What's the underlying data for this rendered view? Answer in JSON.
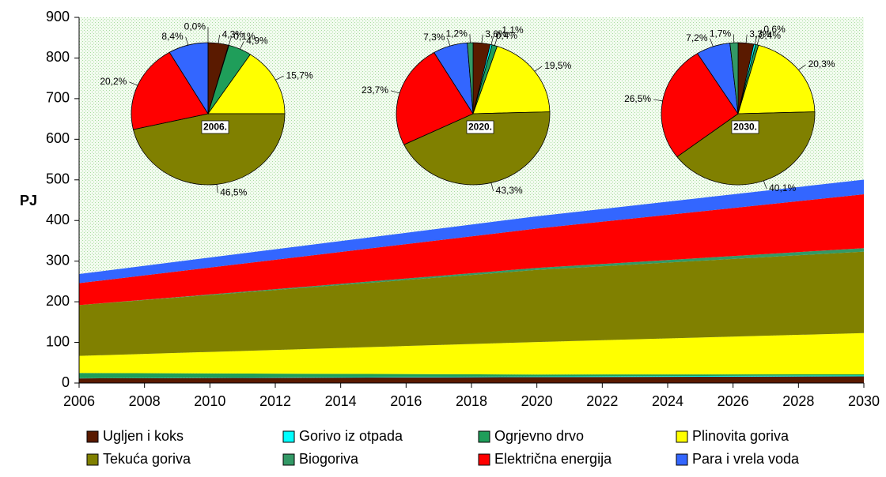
{
  "chart_data": [
    {
      "type": "area",
      "y_label": "PJ",
      "stacked": true,
      "x": [
        2006,
        2020,
        2030
      ],
      "xlim": [
        2006,
        2030
      ],
      "xticks": [
        2006,
        2008,
        2010,
        2012,
        2014,
        2016,
        2018,
        2020,
        2022,
        2024,
        2026,
        2028,
        2030
      ],
      "ylim": [
        0,
        900
      ],
      "yticks": [
        0,
        100,
        200,
        300,
        400,
        500,
        600,
        700,
        800,
        900
      ],
      "series": [
        {
          "name": "Ugljen i koks",
          "color": "#5a1a00",
          "values": [
            11.5,
            14.8,
            16.5
          ]
        },
        {
          "name": "Gorivo iz otpada",
          "color": "#00ffff",
          "values": [
            0.3,
            1.6,
            2
          ]
        },
        {
          "name": "Ogrjevno drvo",
          "color": "#1f9e5a",
          "values": [
            13,
            4.5,
            3
          ]
        },
        {
          "name": "Plinovita goriva",
          "color": "#ffff00",
          "values": [
            42,
            80,
            101.5
          ]
        },
        {
          "name": "Tekuća goriva",
          "color": "#808000",
          "values": [
            125,
            177.5,
            200.5
          ]
        },
        {
          "name": "Biogoriva",
          "color": "#339966",
          "values": [
            0,
            4.9,
            8.5
          ]
        },
        {
          "name": "Električna energija",
          "color": "#ff0000",
          "values": [
            54,
            97,
            132.5
          ]
        },
        {
          "name": "Para i vrela voda",
          "color": "#3366ff",
          "values": [
            22.5,
            30,
            36
          ]
        }
      ]
    },
    {
      "type": "pie",
      "title": "2006.",
      "values": [
        4.3,
        0.1,
        4.9,
        15.7,
        46.5,
        20.2,
        8.4,
        0.0
      ],
      "value_labels": [
        "4,3%",
        "0,1%",
        "4,9%",
        "15,7%",
        "46,5%",
        "20,2%",
        "8,4%",
        "0,0%"
      ],
      "colors": [
        "#5a1a00",
        "#00ffff",
        "#1f9e5a",
        "#ffff00",
        "#808000",
        "#ff0000",
        "#3366ff",
        "#339966"
      ]
    },
    {
      "type": "pie",
      "title": "2020.",
      "values": [
        3.6,
        0.4,
        1.1,
        19.5,
        43.3,
        23.7,
        7.3,
        1.2
      ],
      "value_labels": [
        "3,6%",
        "0,4%",
        "1,1%",
        "19,5%",
        "43,3%",
        "23,7%",
        "7,3%",
        "1,2%"
      ],
      "colors": [
        "#5a1a00",
        "#00ffff",
        "#1f9e5a",
        "#ffff00",
        "#808000",
        "#ff0000",
        "#3366ff",
        "#339966"
      ]
    },
    {
      "type": "pie",
      "title": "2030.",
      "values": [
        3.3,
        0.4,
        0.6,
        20.3,
        40.1,
        26.5,
        7.2,
        1.7
      ],
      "value_labels": [
        "3,3%",
        "0,4%",
        "0,6%",
        "20,3%",
        "40,1%",
        "26,5%",
        "7,2%",
        "1,7%"
      ],
      "colors": [
        "#5a1a00",
        "#00ffff",
        "#1f9e5a",
        "#ffff00",
        "#808000",
        "#ff0000",
        "#3366ff",
        "#339966"
      ]
    }
  ]
}
